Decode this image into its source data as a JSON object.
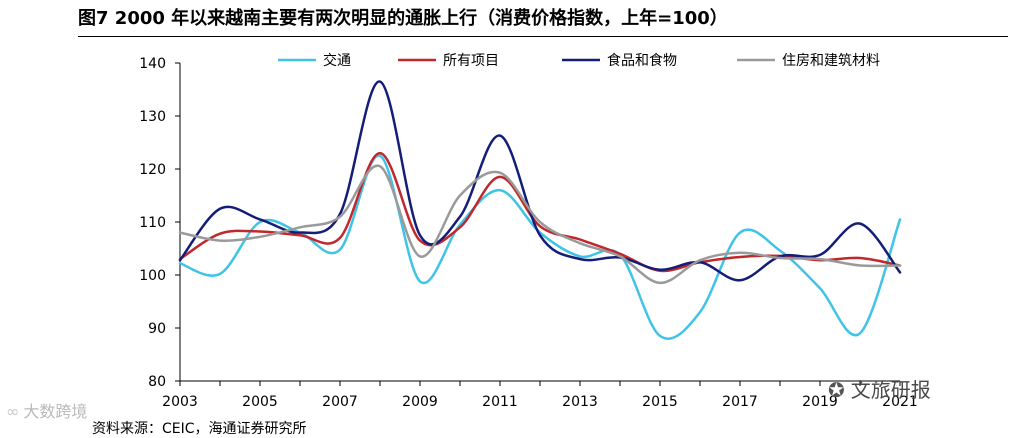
{
  "title": "图7   2000 年以来越南主要有两次明显的通胀上行（消费价格指数，上年=100）",
  "source": "资料来源：CEIC，海通证券研究所",
  "watermark_left": "大数跨境",
  "watermark_right": "文旅研报",
  "chart_data": {
    "type": "line",
    "title": "2000 年以来越南主要有两次明显的通胀上行（消费价格指数，上年=100）",
    "xlabel": "",
    "ylabel": "",
    "x": [
      2003,
      2004,
      2005,
      2006,
      2007,
      2008,
      2009,
      2010,
      2011,
      2012,
      2013,
      2014,
      2015,
      2016,
      2017,
      2018,
      2019,
      2020,
      2021
    ],
    "xticks": [
      "2003",
      "2005",
      "2007",
      "2009",
      "2011",
      "2013",
      "2015",
      "2017",
      "2019",
      "2021"
    ],
    "ylim": [
      80,
      140
    ],
    "yticks": [
      "80",
      "90",
      "100",
      "110",
      "120",
      "130",
      "140"
    ],
    "grid": false,
    "legend_position": "top",
    "series": [
      {
        "name": "交通",
        "color": "#3fc3e6",
        "values": [
          102.2,
          100.2,
          110.0,
          108.0,
          104.8,
          122.5,
          98.8,
          109.5,
          116.0,
          108.0,
          103.5,
          103.8,
          88.5,
          93.0,
          108.0,
          104.6,
          97.5,
          89.0,
          110.5
        ]
      },
      {
        "name": "所有项目",
        "color": "#c0282c",
        "values": [
          103.0,
          107.8,
          108.2,
          107.5,
          107.0,
          123.0,
          106.5,
          109.0,
          118.5,
          109.2,
          106.7,
          104.0,
          100.8,
          102.4,
          103.4,
          103.6,
          102.8,
          103.2,
          101.8
        ]
      },
      {
        "name": "食品和食物",
        "color": "#141e78",
        "values": [
          102.8,
          112.5,
          110.5,
          108.0,
          111.5,
          136.5,
          107.5,
          111.0,
          126.3,
          107.5,
          103.0,
          103.3,
          101.0,
          102.4,
          99.0,
          103.5,
          103.8,
          109.7,
          100.5
        ]
      },
      {
        "name": "住房和建筑材料",
        "color": "#9a9a9a",
        "values": [
          108.0,
          106.5,
          107.2,
          109.0,
          111.0,
          120.5,
          103.5,
          115.0,
          119.3,
          110.0,
          106.0,
          103.5,
          98.5,
          102.8,
          104.2,
          103.2,
          103.0,
          101.8,
          101.8
        ]
      }
    ]
  }
}
